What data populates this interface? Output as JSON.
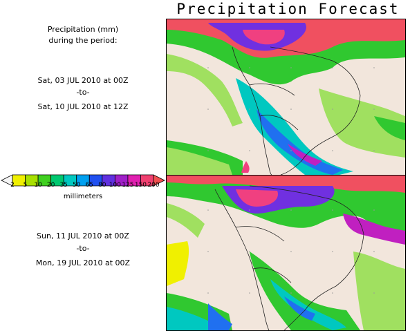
{
  "title": "Precipitation Forecast",
  "legend": {
    "heading_line1": "Precipitation (mm)",
    "heading_line2": "during the period:",
    "units": "millimeters",
    "levels": [
      "2",
      "5",
      "10",
      "20",
      "35",
      "50",
      "65",
      "80",
      "100",
      "125",
      "150",
      "200"
    ],
    "colors": [
      "#f0f000",
      "#a8e000",
      "#40d020",
      "#00c870",
      "#00c8c0",
      "#00a0f0",
      "#2050f0",
      "#6030e0",
      "#a020c8",
      "#e020b0",
      "#f04070",
      "#f05050"
    ]
  },
  "period1": {
    "start": "Sat, 03 JUL 2010 at 00Z",
    "sep": "-to-",
    "end": "Sat, 10 JUL 2010 at 12Z"
  },
  "period2": {
    "start": "Sun, 11 JUL 2010 at 00Z",
    "sep": "-to-",
    "end": "Mon, 19 JUL 2010 at 00Z"
  },
  "map_colors": {
    "land_dry": "#f2e6dc",
    "light_green": "#a0e060",
    "green": "#30c830",
    "cyan": "#00c8c0",
    "blue": "#2070f0",
    "purple": "#7030e0",
    "magenta": "#c020c0",
    "pink": "#f04080",
    "red": "#f05060",
    "yellow": "#f0f000"
  }
}
